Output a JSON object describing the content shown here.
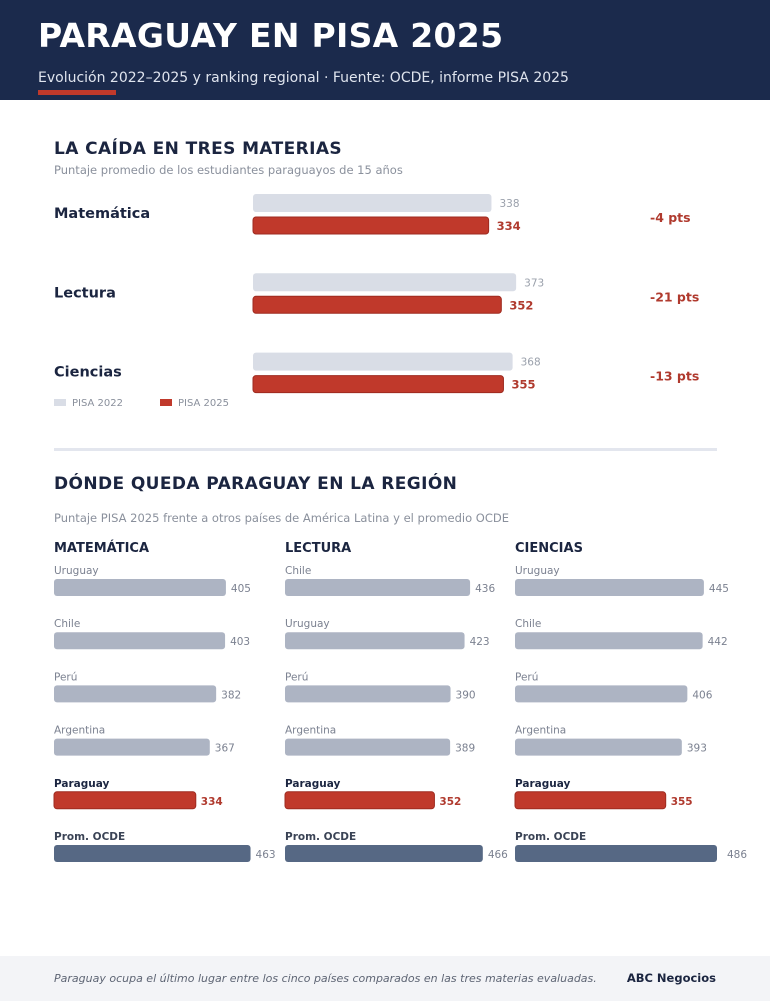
{
  "header": {
    "title": "PARAGUAY EN PISA 2025",
    "subtitle": "Evolución 2022–2025 y ranking regional  ·  Fuente: OCDE, informe PISA 2025"
  },
  "section_one": {
    "title": "LA CAÍDA EN TRES MATERIAS",
    "subtitle": "Puntaje promedio de los estudiantes paraguayos de 15 años"
  },
  "section_two": {
    "title": "DÓNDE QUEDA PARAGUAY EN LA REGIÓN",
    "subtitle": "Puntaje PISA 2025 frente a otros países de América Latina y el promedio OCDE"
  },
  "footer": {
    "note": "Paraguay ocupa el último lugar entre los cinco países comparados en las tres materias evaluadas.",
    "brand": "ABC Negocios"
  },
  "colors": {
    "pisa2022": "#d9dde6",
    "pisa2025": "#c0392b",
    "country": "#adb4c3",
    "oecd": "#566884",
    "delta": "#b03a2e",
    "label": "#1b2540",
    "muted": "#8a909c"
  },
  "chart_data": [
    {
      "type": "bar",
      "orientation": "horizontal",
      "categories": [
        "Matemática",
        "Lectura",
        "Ciencias"
      ],
      "series": [
        {
          "name": "PISA 2022",
          "values": [
            338,
            373,
            368
          ]
        },
        {
          "name": "PISA 2025",
          "values": [
            334,
            352,
            355
          ]
        }
      ],
      "deltas": [
        "-4 pts",
        "-21 pts",
        "-13 pts"
      ],
      "legend": "bottom-left"
    },
    {
      "type": "bar",
      "orientation": "horizontal",
      "title": "MATEMÁTICA",
      "categories": [
        "Uruguay",
        "Chile",
        "Perú",
        "Argentina",
        "Paraguay",
        "Prom. OCDE"
      ],
      "values": [
        405,
        403,
        382,
        367,
        334,
        463
      ]
    },
    {
      "type": "bar",
      "orientation": "horizontal",
      "title": "LECTURA",
      "categories": [
        "Chile",
        "Uruguay",
        "Perú",
        "Argentina",
        "Paraguay",
        "Prom. OCDE"
      ],
      "values": [
        436,
        423,
        390,
        389,
        352,
        466
      ]
    },
    {
      "type": "bar",
      "orientation": "horizontal",
      "title": "CIENCIAS",
      "categories": [
        "Uruguay",
        "Chile",
        "Perú",
        "Argentina",
        "Paraguay",
        "Prom. OCDE"
      ],
      "values": [
        445,
        442,
        406,
        393,
        355,
        486
      ]
    }
  ]
}
